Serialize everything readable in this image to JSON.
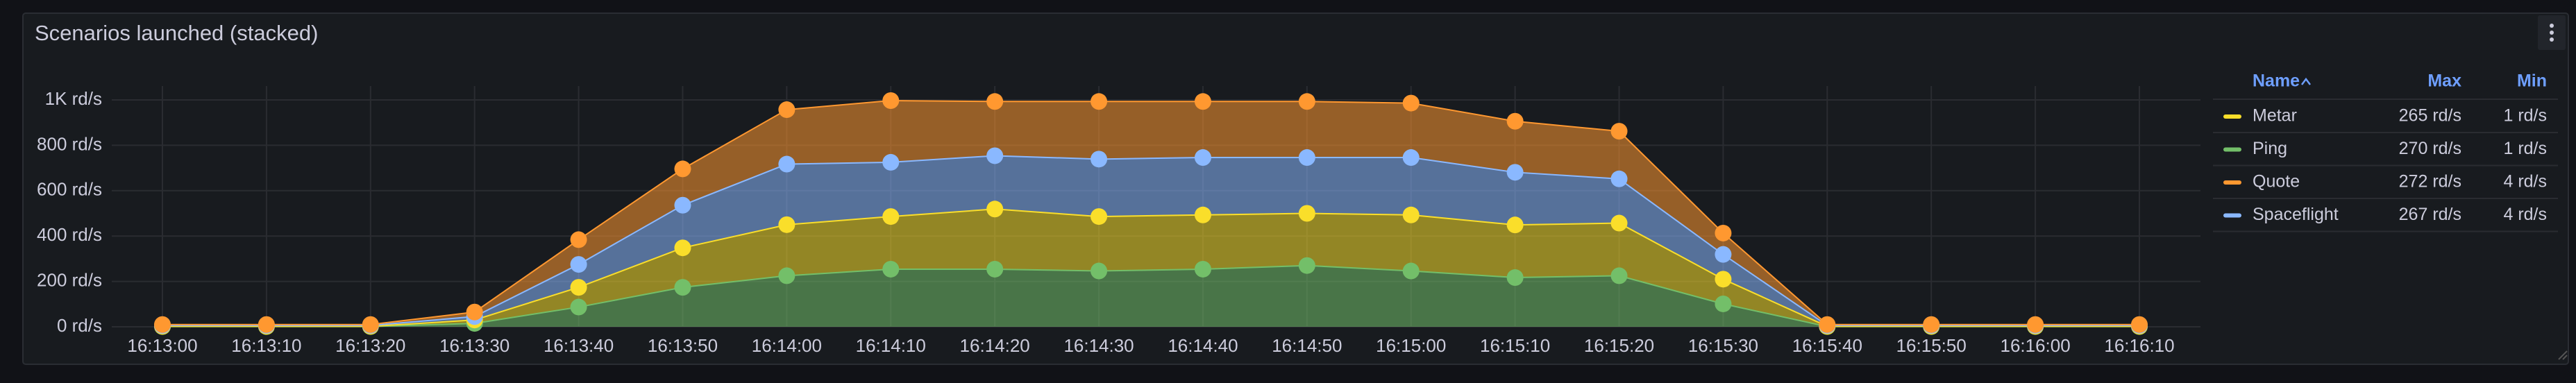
{
  "chart_data": {
    "type": "stacked-area",
    "title": "Scenarios launched (stacked)",
    "categories": [
      "16:13:00",
      "16:13:10",
      "16:13:20",
      "16:13:30",
      "16:13:40",
      "16:13:50",
      "16:14:00",
      "16:14:10",
      "16:14:20",
      "16:14:30",
      "16:14:40",
      "16:14:50",
      "16:15:00",
      "16:15:10",
      "16:15:20",
      "16:15:30",
      "16:15:40",
      "16:15:50",
      "16:16:00",
      "16:16:10"
    ],
    "series": [
      {
        "name": "Ping",
        "color": "#73bf69",
        "max": "270 rd/s",
        "min": "1 rd/s",
        "values": [
          1,
          1,
          1,
          15,
          87,
          174,
          225,
          254,
          254,
          246,
          254,
          270,
          246,
          217,
          225,
          101,
          1,
          1,
          1,
          1
        ]
      },
      {
        "name": "Metar",
        "color": "#fade2a",
        "max": "265 rd/s",
        "min": "1 rd/s",
        "values": [
          1,
          1,
          1,
          15,
          87,
          174,
          225,
          232,
          265,
          240,
          239,
          230,
          247,
          232,
          232,
          109,
          1,
          1,
          1,
          1
        ]
      },
      {
        "name": "Spaceflight",
        "color": "#8ab8ff",
        "max": "267 rd/s",
        "min": "4 rd/s",
        "values": [
          4,
          4,
          4,
          15,
          101,
          188,
          267,
          239,
          235,
          253,
          253,
          246,
          253,
          232,
          195,
          109,
          4,
          4,
          4,
          4
        ]
      },
      {
        "name": "Quote",
        "color": "#ff9830",
        "max": "272 rd/s",
        "min": "4 rd/s",
        "values": [
          4,
          4,
          4,
          20,
          109,
          160,
          240,
          272,
          239,
          254,
          247,
          247,
          240,
          225,
          210,
          94,
          4,
          4,
          4,
          4
        ]
      }
    ],
    "ylim": [
      0,
      1000
    ],
    "yticks": [
      {
        "value": 0,
        "label": "0 rd/s"
      },
      {
        "value": 200,
        "label": "200 rd/s"
      },
      {
        "value": 400,
        "label": "400 rd/s"
      },
      {
        "value": 600,
        "label": "600 rd/s"
      },
      {
        "value": 800,
        "label": "800 rd/s"
      },
      {
        "value": 1000,
        "label": "1K rd/s"
      }
    ],
    "grid": true,
    "legend": {
      "position": "right",
      "columns": [
        "Name",
        "Max",
        "Min"
      ]
    }
  }
}
